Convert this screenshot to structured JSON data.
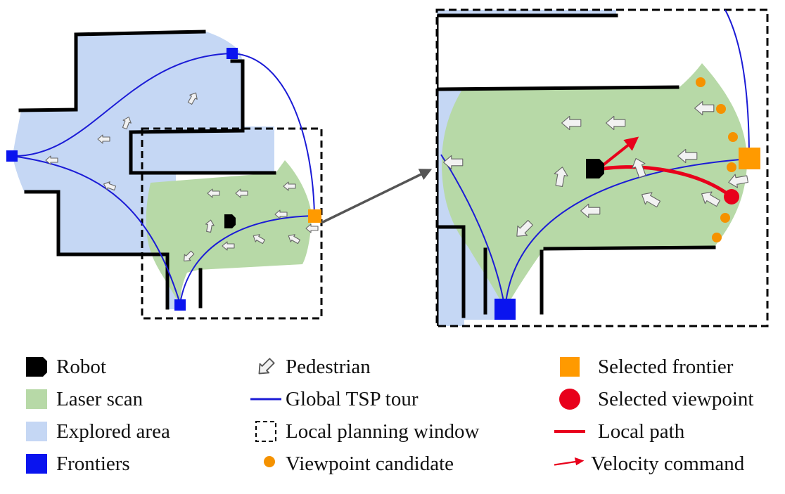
{
  "colors": {
    "explored": "#c5d7f4",
    "laser": "#b7d9a7",
    "frontier": "#0a14ef",
    "selected_frontier": "#ff9a00",
    "viewpoint_candidate": "#f59200",
    "selected_viewpoint": "#e8001b",
    "tour": "#1b1bd6",
    "local_path": "#e8001b",
    "wall": "#000000",
    "pedestrian_fill": "#f2f2f2",
    "pedestrian_stroke": "#666666",
    "zoom_arrow": "#555555"
  },
  "legend": {
    "col1": [
      {
        "label": "Robot",
        "icon": "robot-icon"
      },
      {
        "label": "Laser scan",
        "icon": "laser-scan-swatch"
      },
      {
        "label": "Explored area",
        "icon": "explored-area-swatch"
      },
      {
        "label": "Frontiers",
        "icon": "frontier-square-icon"
      }
    ],
    "col2": [
      {
        "label": "Pedestrian",
        "icon": "pedestrian-arrow-icon"
      },
      {
        "label": "Global TSP tour",
        "icon": "blue-line-icon"
      },
      {
        "label": "Local planning window",
        "icon": "dashed-square-icon"
      },
      {
        "label": "Viewpoint candidate",
        "icon": "orange-dot-icon"
      }
    ],
    "col3": [
      {
        "label": "Selected frontier",
        "icon": "orange-square-icon"
      },
      {
        "label": "Selected viewpoint",
        "icon": "red-circle-icon"
      },
      {
        "label": "Local path",
        "icon": "red-line-icon"
      },
      {
        "label": "Velocity command",
        "icon": "red-arrow-icon"
      }
    ]
  }
}
